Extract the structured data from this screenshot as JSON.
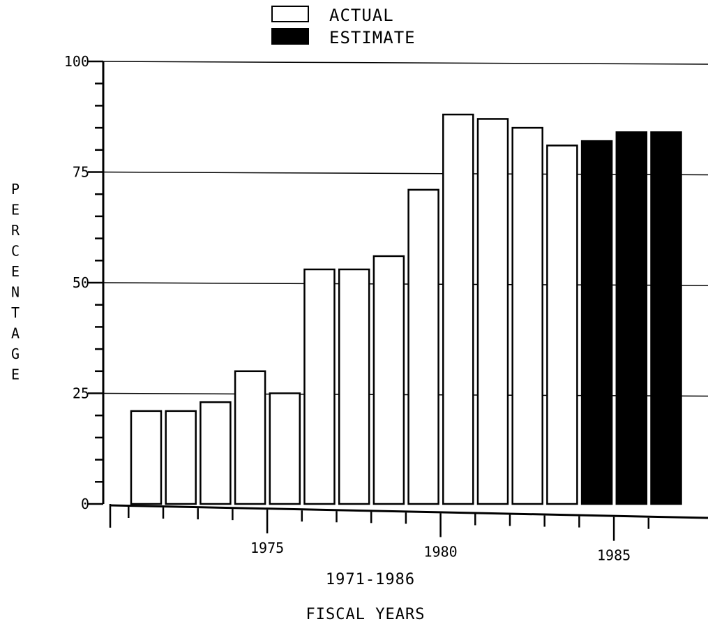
{
  "chart_data": {
    "type": "bar",
    "categories": [
      "1971",
      "1972",
      "1973",
      "1974",
      "1975",
      "1976",
      "1977",
      "1978",
      "1979",
      "1980",
      "1981",
      "1982",
      "1983",
      "1984",
      "1985",
      "1986"
    ],
    "series": [
      {
        "name": "ACTUAL",
        "values": [
          21,
          21,
          23,
          30,
          25,
          53,
          53,
          56,
          71,
          88,
          87,
          85,
          81,
          null,
          null,
          null
        ]
      },
      {
        "name": "ESTIMATE",
        "values": [
          null,
          null,
          null,
          null,
          null,
          null,
          null,
          null,
          null,
          null,
          null,
          null,
          null,
          82,
          84,
          84
        ]
      }
    ],
    "xlabel_range": "1971-1986",
    "xlabel": "FISCAL YEARS",
    "ylabel": "PERCENTAGE",
    "ylim": [
      0,
      100
    ],
    "yticks": [
      "0",
      "25",
      "50",
      "75",
      "100"
    ],
    "xtick_labels": [
      {
        "year": "1975",
        "text": "1975"
      },
      {
        "year": "1980",
        "text": "1980"
      },
      {
        "year": "1985",
        "text": "1985"
      }
    ],
    "grid": true,
    "legend": {
      "position": "top-center",
      "entries": [
        "ACTUAL",
        "ESTIMATE"
      ]
    },
    "colors": {
      "actual_fill": "#ffffff",
      "estimate_fill": "#000000",
      "stroke": "#000000"
    }
  }
}
